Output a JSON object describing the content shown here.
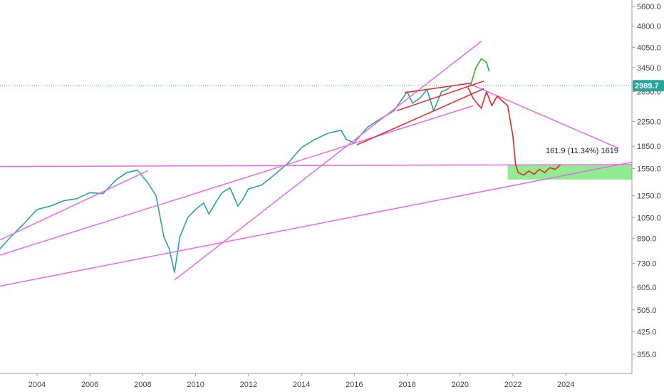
{
  "chart_data": {
    "type": "line",
    "title": "",
    "xlabel": "",
    "ylabel": "",
    "x_tick_labels": [
      "2004",
      "2006",
      "2008",
      "2010",
      "2012",
      "2014",
      "2016",
      "2018",
      "2020",
      "2022",
      "2024"
    ],
    "y_tick_labels": [
      "5600.0",
      "4800.0",
      "4050.0",
      "3450.0",
      "2850.0",
      "2250.0",
      "1850.0",
      "1550.0",
      "1250.0",
      "1050.0",
      "890.0",
      "730.0",
      "605.0",
      "505.0",
      "425.0",
      "355.0"
    ],
    "y_scale": "log",
    "xlim": [
      2002.6,
      2026.5
    ],
    "ylim": [
      305,
      5900
    ],
    "current_price": {
      "label": "2989.7",
      "value": 2989.7,
      "color": "#26a69a"
    },
    "price_series": {
      "name": "",
      "color": "#26a69a",
      "x": [
        2002.6,
        2003.0,
        2003.5,
        2004.0,
        2004.5,
        2005.0,
        2005.5,
        2006.0,
        2006.5,
        2007.0,
        2007.4,
        2007.8,
        2008.2,
        2008.5,
        2008.8,
        2009.0,
        2009.2,
        2009.4,
        2009.7,
        2010.0,
        2010.3,
        2010.5,
        2010.8,
        2011.0,
        2011.3,
        2011.6,
        2011.8,
        2012.0,
        2012.5,
        2013.0,
        2013.5,
        2014.0,
        2014.5,
        2015.0,
        2015.5,
        2015.7,
        2016.0,
        2016.2,
        2016.5,
        2017.0,
        2017.5,
        2018.0,
        2018.2,
        2018.5,
        2018.75,
        2019.0,
        2019.3,
        2019.5,
        2019.7
      ],
      "values": [
        820,
        900,
        1000,
        1120,
        1150,
        1200,
        1220,
        1280,
        1270,
        1420,
        1500,
        1530,
        1380,
        1250,
        900,
        820,
        680,
        900,
        1050,
        1120,
        1180,
        1080,
        1200,
        1280,
        1330,
        1150,
        1220,
        1320,
        1360,
        1480,
        1620,
        1830,
        1950,
        2050,
        2100,
        1950,
        1900,
        2000,
        2150,
        2300,
        2450,
        2850,
        2600,
        2720,
        2900,
        2450,
        2850,
        2900,
        2990
      ]
    },
    "support_zone": {
      "y_low": 1420,
      "y_high": 1590,
      "x_start": 2021.8,
      "color": "#7ee87e"
    },
    "annotation": {
      "text": "161.9 (11.34%) 1619"
    },
    "trendlines": [
      {
        "color": "#ee66ee",
        "points": [
          [
            2002.6,
            1575
          ],
          [
            2026.5,
            1600
          ]
        ]
      },
      {
        "color": "#ee66ee",
        "points": [
          [
            2002.6,
            880
          ],
          [
            2008.2,
            1525
          ]
        ]
      },
      {
        "color": "#ee66ee",
        "points": [
          [
            2002.6,
            780
          ],
          [
            2020.5,
            2550
          ]
        ]
      },
      {
        "color": "#ee66ee",
        "points": [
          [
            2002.6,
            610
          ],
          [
            2026.5,
            1630
          ]
        ]
      },
      {
        "color": "#ee66ee",
        "points": [
          [
            2009.2,
            640
          ],
          [
            2020.8,
            4250
          ]
        ]
      },
      {
        "color": "#ee66ee",
        "points": [
          [
            2020.3,
            3050
          ],
          [
            2026.0,
            1820
          ]
        ]
      },
      {
        "color": "#ee2222",
        "points": [
          [
            2017.9,
            2830
          ],
          [
            2020.4,
            3050
          ]
        ]
      },
      {
        "color": "#ee2222",
        "points": [
          [
            2017.6,
            2450
          ],
          [
            2020.9,
            3100
          ]
        ]
      },
      {
        "color": "#ee2222",
        "points": [
          [
            2016.1,
            1870
          ],
          [
            2020.9,
            2920
          ]
        ]
      }
    ],
    "projections": [
      {
        "color": "#ee2222",
        "x": [
          2020.3,
          2020.5,
          2020.8,
          2021.0,
          2021.2,
          2021.4,
          2021.6,
          2021.8,
          2022.0,
          2022.1,
          2022.2,
          2022.4,
          2022.6,
          2022.8,
          2023.0,
          2023.2,
          2023.4,
          2023.6,
          2023.8
        ],
        "values": [
          2950,
          2700,
          2500,
          2850,
          2550,
          2750,
          2650,
          2550,
          2000,
          1600,
          1500,
          1470,
          1520,
          1480,
          1540,
          1500,
          1560,
          1540,
          1600
        ]
      },
      {
        "color": "#22bb22",
        "x": [
          2020.4,
          2020.6,
          2020.8,
          2021.0,
          2021.1
        ],
        "values": [
          3000,
          3450,
          3700,
          3600,
          3350
        ]
      }
    ]
  }
}
